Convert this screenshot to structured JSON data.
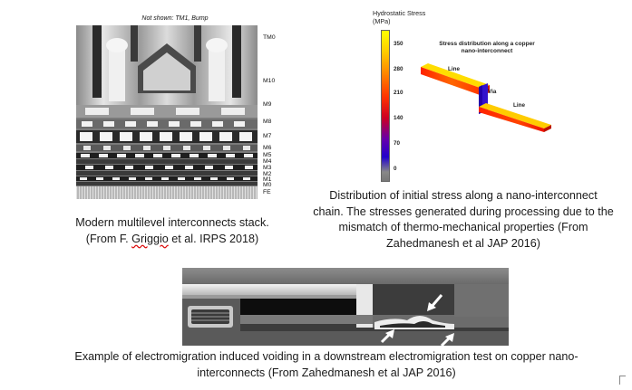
{
  "left_figure": {
    "note": "Not shown: TM1, Bump",
    "metal_labels": [
      "TM0",
      "M10",
      "M9",
      "M8",
      "M7",
      "M6",
      "M5",
      "M4",
      "M3",
      "M2",
      "M1",
      "M0",
      "FE"
    ],
    "caption_line1": "Modern multilevel interconnects stack.",
    "caption_line2_pre": "(From F. ",
    "caption_line2_name": "Griggio",
    "caption_line2_post": " et al. IRPS 2018)"
  },
  "right_figure": {
    "legend_title_line1": "Hydrostatic Stress",
    "legend_title_line2": "(MPa)",
    "legend_ticks": [
      "350",
      "280",
      "210",
      "140",
      "70",
      "0"
    ],
    "plot_title_line1": "Stress distribution along a copper",
    "plot_title_line2": "nano-interconnect",
    "label_line_top": "Line",
    "label_via": "Via",
    "label_line_bottom": "Line",
    "caption_line1": "Distribution of initial stress along a nano-interconnect",
    "caption_line2": "chain. The stresses generated during processing due to the",
    "caption_line3": "mismatch of thermo-mechanical properties (From",
    "caption_line4": "Zahedmanesh et al JAP 2016)"
  },
  "bottom_figure": {
    "caption_line1": "Example of electromigration induced voiding in a downstream electromigration test on copper nano-",
    "caption_line2": "interconnects (From Zahedmanesh et al JAP 2016)"
  },
  "colors": {
    "stress_high": "#ffff00",
    "stress_mid": "#ff3300",
    "stress_low": "#3300cc",
    "stress_zero": "#888888"
  }
}
